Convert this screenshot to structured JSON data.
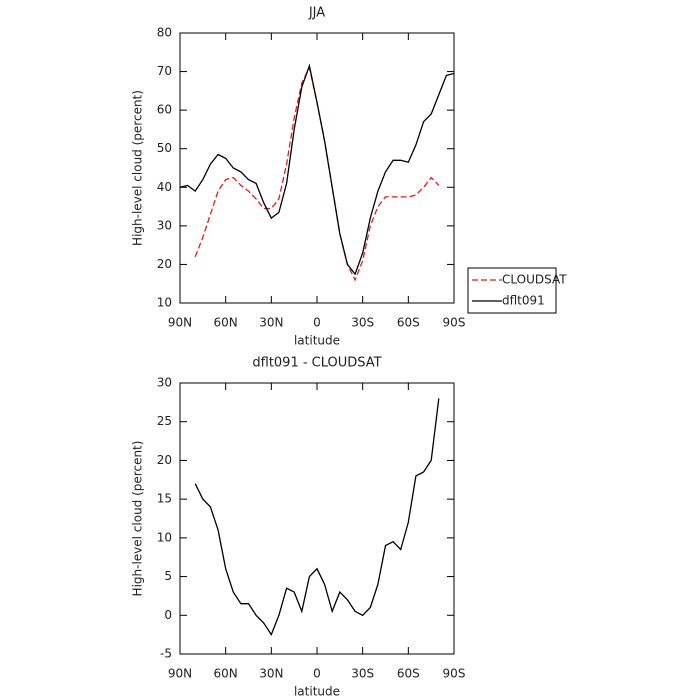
{
  "chart_data": [
    {
      "type": "line",
      "title": "JJA",
      "xlabel": "latitude",
      "ylabel": "High-level cloud (percent)",
      "x": [
        90,
        85,
        80,
        75,
        70,
        65,
        60,
        55,
        50,
        45,
        40,
        35,
        30,
        25,
        20,
        15,
        10,
        5,
        0,
        -5,
        -10,
        -15,
        -20,
        -25,
        -30,
        -35,
        -40,
        -45,
        -50,
        -55,
        -60,
        -65,
        -70,
        -75,
        -80,
        -85,
        -90
      ],
      "series": [
        {
          "name": "CLOUDSAT",
          "color": "#e41a1c",
          "dash": true,
          "values": [
            null,
            null,
            22,
            27,
            33,
            39,
            42,
            42.5,
            40.5,
            39,
            37,
            34.5,
            34.5,
            37,
            46,
            58,
            67,
            71,
            62,
            52,
            40,
            28,
            20,
            16,
            21,
            30,
            35,
            37.5,
            37.5,
            37.5,
            37.5,
            38,
            40,
            42.5,
            40.5,
            null,
            null
          ]
        },
        {
          "name": "dflt091",
          "color": "#000000",
          "dash": false,
          "values": [
            40,
            40.5,
            39,
            42,
            46,
            48.5,
            47.5,
            45,
            44,
            42,
            41,
            36,
            32,
            33.5,
            41,
            55,
            66,
            71.5,
            62,
            52,
            40,
            28,
            20,
            17.5,
            23,
            32,
            39,
            44,
            47,
            47,
            46.5,
            51,
            57,
            59,
            64,
            69,
            69.5
          ]
        }
      ],
      "xlim": [
        90,
        -90
      ],
      "xticks": [
        {
          "value": 90,
          "label": "90N"
        },
        {
          "value": 60,
          "label": "60N"
        },
        {
          "value": 30,
          "label": "30N"
        },
        0,
        {
          "value": -30,
          "label": "30S"
        },
        {
          "value": -60,
          "label": "60S"
        },
        {
          "value": -90,
          "label": "90S"
        }
      ],
      "ylim": [
        10,
        80
      ],
      "yticks": [
        10,
        20,
        30,
        40,
        50,
        60,
        70,
        80
      ],
      "legend": "right"
    },
    {
      "type": "line",
      "title": "dflt091 - CLOUDSAT",
      "xlabel": "latitude",
      "ylabel": "High-level cloud (percent)",
      "x": [
        80,
        75,
        70,
        65,
        60,
        55,
        50,
        45,
        40,
        35,
        30,
        25,
        20,
        15,
        10,
        5,
        0,
        -5,
        -10,
        -15,
        -20,
        -25,
        -30,
        -35,
        -40,
        -45,
        -50,
        -55,
        -60,
        -65,
        -70,
        -75,
        -80
      ],
      "series": [
        {
          "color": "#000000",
          "dash": false,
          "values": [
            17,
            15,
            14,
            11,
            6,
            3,
            1.5,
            1.5,
            0,
            -1,
            -2.5,
            0,
            3.5,
            3,
            0.5,
            5,
            6,
            4,
            0.5,
            3,
            2,
            0.5,
            0,
            1,
            4,
            9,
            9.5,
            8.5,
            12,
            18,
            18.5,
            20,
            28
          ]
        }
      ],
      "xlim": [
        90,
        -90
      ],
      "xticks": [
        {
          "value": 90,
          "label": "90N"
        },
        {
          "value": 60,
          "label": "60N"
        },
        {
          "value": 30,
          "label": "30N"
        },
        0,
        {
          "value": -30,
          "label": "30S"
        },
        {
          "value": -60,
          "label": "60S"
        },
        {
          "value": -90,
          "label": "90S"
        }
      ],
      "ylim": [
        -5,
        30
      ],
      "yticks": [
        -5,
        0,
        5,
        10,
        15,
        20,
        25,
        30
      ]
    }
  ]
}
